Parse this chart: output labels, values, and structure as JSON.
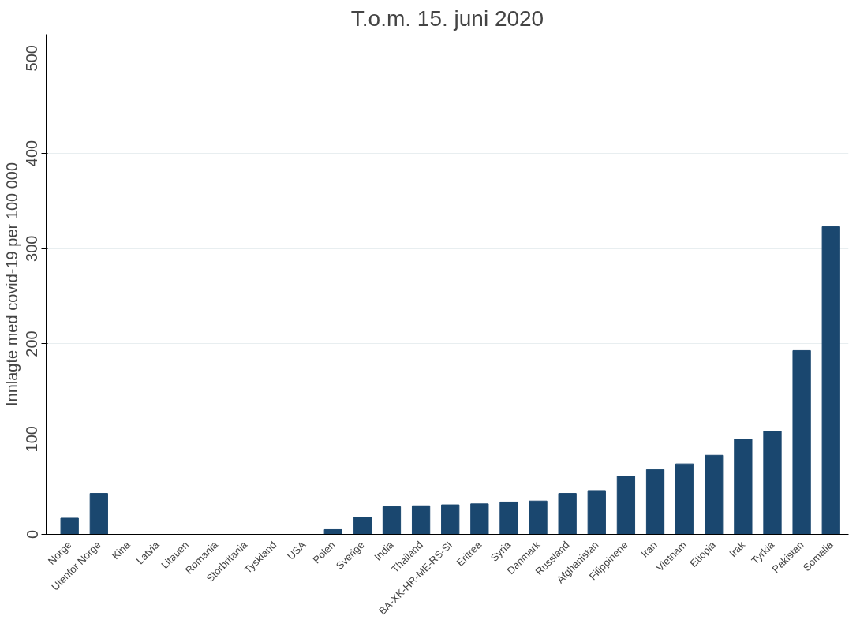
{
  "chart_data": {
    "type": "bar",
    "title": "T.o.m. 15. juni 2020",
    "ylabel": "Innlagte med covid-19 per 100 000",
    "categories": [
      "Norge",
      "Utenfor Norge",
      "Kina",
      "Latvia",
      "Litauen",
      "Romania",
      "Storbritania",
      "Tyskland",
      "USA",
      "Polen",
      "Sverige",
      "India",
      "Thailand",
      "BA-XK-HR-ME-RS-SI",
      "Eritrea",
      "Syria",
      "Danmark",
      "Russland",
      "Afghanistan",
      "Filippinene",
      "Iran",
      "Vietnam",
      "Etiopia",
      "Irak",
      "Tyrkia",
      "Pakistan",
      "Somalia"
    ],
    "values": [
      17,
      43,
      0,
      0,
      0,
      0,
      0,
      0,
      0,
      5,
      18,
      29,
      30,
      31,
      32,
      34,
      35,
      43,
      46,
      61,
      68,
      74,
      83,
      100,
      108,
      193,
      323
    ],
    "color": "#1a476f",
    "ylim": [
      0,
      525
    ],
    "yticks": [
      0,
      100,
      200,
      300,
      400,
      500
    ],
    "grid": "y"
  }
}
